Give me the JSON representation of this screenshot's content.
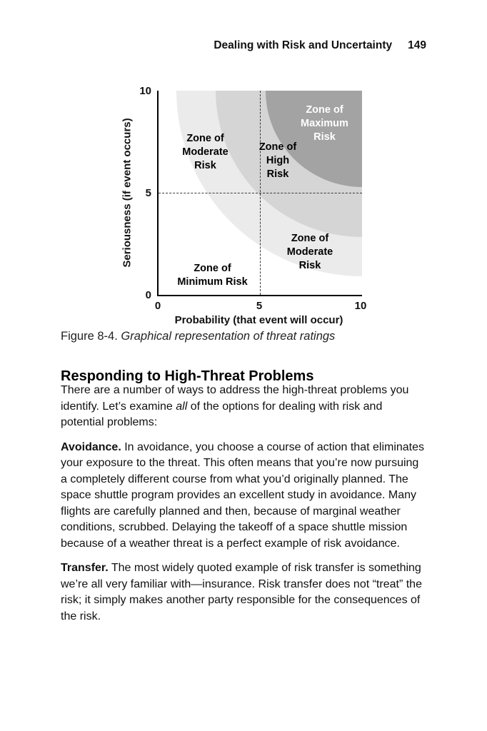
{
  "running_head": {
    "title": "Dealing with Risk and Uncertainty",
    "page_number": "149"
  },
  "figure": {
    "zone_labels": {
      "maximum": "Zone of\nMaximum\nRisk",
      "moderate_upper": "Zone of\nModerate\nRisk",
      "high": "Zone of\nHigh\nRisk",
      "moderate_lower": "Zone of\nModerate\nRisk",
      "minimum": "Zone of\nMinimum Risk"
    },
    "caption_label": "Figure 8-4.",
    "caption_text": "Graphical representation of threat ratings"
  },
  "chart_data": {
    "type": "area",
    "title": "Figure 8-4. Graphical representation of threat ratings",
    "xlabel": "Probability (that event will occur)",
    "ylabel": "Seriousness (if event occurs)",
    "xlim": [
      0,
      10
    ],
    "ylim": [
      0,
      10
    ],
    "xticks": [
      0,
      5,
      10
    ],
    "yticks": [
      0,
      5,
      10
    ],
    "grid": false,
    "reference_lines": [
      {
        "axis": "x",
        "value": 5,
        "style": "dashed"
      },
      {
        "axis": "y",
        "value": 5,
        "style": "dashed"
      }
    ],
    "zones": [
      {
        "label": "Zone of Minimum Risk",
        "shape": "background",
        "region": "lower-left",
        "color": "#ffffff",
        "text_color": "#000000"
      },
      {
        "label": "Zone of Moderate Risk",
        "shape": "quarter-circle centered at (10,10)",
        "radius": 9.1,
        "color": "#ebebeb",
        "text_color": "#000000",
        "label_regions": [
          "upper-left band",
          "lower-right band"
        ]
      },
      {
        "label": "Zone of High Risk",
        "shape": "quarter-circle centered at (10,10)",
        "radius": 7.2,
        "color": "#d5d5d5",
        "text_color": "#000000"
      },
      {
        "label": "Zone of Maximum Risk",
        "shape": "quarter-circle centered at (10,10)",
        "radius": 4.7,
        "color": "#a3a3a3",
        "text_color": "#ffffff"
      }
    ]
  },
  "section": {
    "heading": "Responding to High-Threat Problems",
    "intro": {
      "t1": "There are a number of ways to address the high-threat problems you identify. Let’s examine ",
      "italic": "all",
      "t2": " of the options for dealing with risk and potential problems:"
    },
    "avoidance": {
      "lead": "Avoidance.",
      "text": " In avoidance, you choose a course of action that eliminates your exposure to the threat. This often means that you’re now pursuing a completely different course from what you’d originally planned. The space shuttle program provides an excellent study in avoidance. Many flights are carefully planned and then, because of marginal weather conditions, scrubbed. Delaying the takeoff of a space shuttle mission because of a weather threat is a perfect example of risk avoidance."
    },
    "transfer": {
      "lead": "Transfer.",
      "text": " The most widely quoted example of risk transfer is something we’re all very familiar with—insurance. Risk transfer does not “treat” the risk; it simply makes another party responsible for the consequences of the risk."
    }
  }
}
